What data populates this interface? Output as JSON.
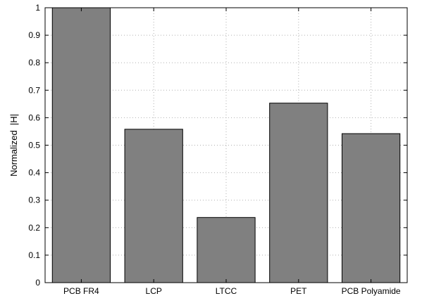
{
  "chart_data": {
    "type": "bar",
    "title": "",
    "xlabel": "",
    "ylabel": "Normalized  |H|",
    "categories": [
      "PCB FR4",
      "LCP",
      "LTCC",
      "PET",
      "PCB Polyamide"
    ],
    "values": [
      1.0,
      0.558,
      0.237,
      0.653,
      0.542
    ],
    "ylim": [
      0,
      1
    ],
    "yticks": [
      0,
      0.1,
      0.2,
      0.3,
      0.4,
      0.5,
      0.6,
      0.7,
      0.8,
      0.9,
      1
    ],
    "ytick_labels": [
      "0",
      "0.1",
      "0.2",
      "0.3",
      "0.4",
      "0.5",
      "0.6",
      "0.7",
      "0.8",
      "0.9",
      "1"
    ],
    "grid": true,
    "bar_color": "#808080",
    "edge_color": "#000000"
  }
}
